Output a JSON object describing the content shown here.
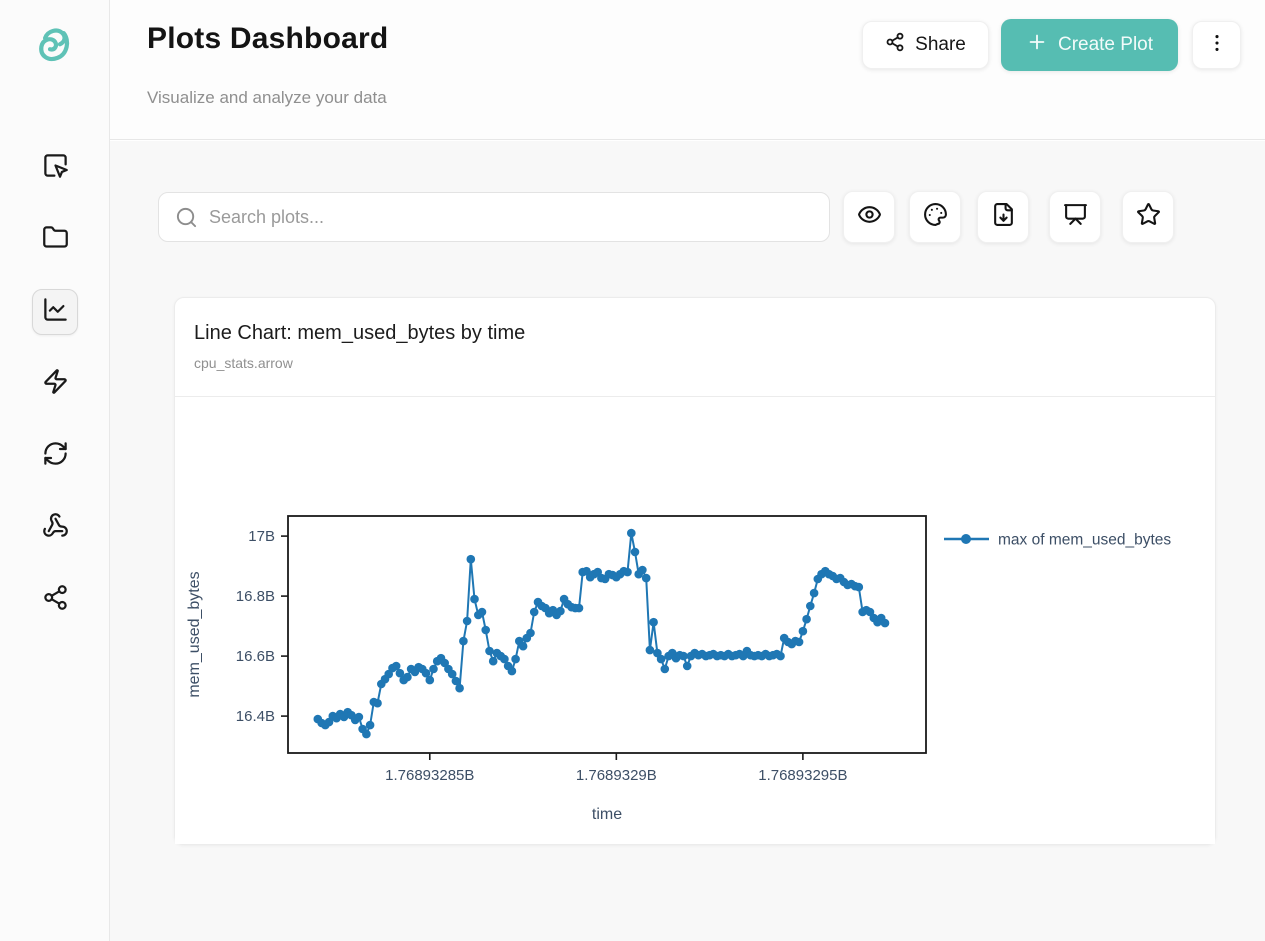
{
  "colors": {
    "accent": "#56bdb2",
    "accent_text": "#f2fbfa",
    "logo": "#5fc2b6",
    "line": "#1f77b4",
    "axis_text": "#3d4f66",
    "plot_frame": "#1a1a1a"
  },
  "sidebar": {
    "logo_icon": "swirl-logo-icon",
    "items": [
      {
        "icon": "square-pointer-icon",
        "active": false
      },
      {
        "icon": "folder-icon",
        "active": false
      },
      {
        "icon": "line-chart-icon",
        "active": true
      },
      {
        "icon": "zap-icon",
        "active": false
      },
      {
        "icon": "refresh-icon",
        "active": false
      },
      {
        "icon": "webhook-icon",
        "active": false
      },
      {
        "icon": "share-icon",
        "active": false
      }
    ]
  },
  "header": {
    "title": "Plots Dashboard",
    "subtitle": "Visualize and analyze your data",
    "share_label": "Share",
    "create_label": "Create Plot",
    "menu_icon": "kebab-menu-icon"
  },
  "toolbar": {
    "search_placeholder": "Search plots...",
    "action_icons": [
      "eye-icon",
      "palette-icon",
      "file-download-icon",
      "presentation-icon",
      "star-icon"
    ]
  },
  "card": {
    "title": "Line Chart: mem_used_bytes by time",
    "subtitle": "cpu_stats.arrow"
  },
  "chart_data": {
    "type": "line",
    "title": "",
    "xlabel": "time",
    "ylabel": "mem_used_bytes",
    "grid": false,
    "legend_position": "right-top-outside",
    "xlim": [
      1768932812,
      1768932983
    ],
    "ylim": [
      16.277,
      17.067
    ],
    "xticks": {
      "values": [
        1768932850,
        1768932900,
        1768932950
      ],
      "labels": [
        "1.76893285B",
        "1.7689329B",
        "1.76893295B"
      ]
    },
    "yticks": {
      "values": [
        16.4,
        16.6,
        16.8,
        17.0
      ],
      "labels": [
        "16.4B",
        "16.6B",
        "16.8B",
        "17B"
      ]
    },
    "y_unit": "billions of bytes",
    "series": [
      {
        "name": "max of mem_used_bytes",
        "color": "#1f77b4",
        "marker": "circle",
        "x": [
          1768932820,
          1768932821,
          1768932822,
          1768932823,
          1768932824,
          1768932825,
          1768932826,
          1768932827,
          1768932828,
          1768932829,
          1768932830,
          1768932831,
          1768932832,
          1768932833,
          1768932834,
          1768932835,
          1768932836,
          1768932837,
          1768932838,
          1768932839,
          1768932840,
          1768932841,
          1768932842,
          1768932843,
          1768932844,
          1768932845,
          1768932846,
          1768932847,
          1768932848,
          1768932849,
          1768932850,
          1768932851,
          1768932852,
          1768932853,
          1768932854,
          1768932855,
          1768932856,
          1768932857,
          1768932858,
          1768932859,
          1768932860,
          1768932861,
          1768932862,
          1768932863,
          1768932864,
          1768932865,
          1768932866,
          1768932867,
          1768932868,
          1768932869,
          1768932870,
          1768932871,
          1768932872,
          1768932873,
          1768932874,
          1768932875,
          1768932876,
          1768932877,
          1768932878,
          1768932879,
          1768932880,
          1768932881,
          1768932882,
          1768932883,
          1768932884,
          1768932885,
          1768932886,
          1768932887,
          1768932888,
          1768932889,
          1768932890,
          1768932891,
          1768932892,
          1768932893,
          1768932894,
          1768932895,
          1768932896,
          1768932897,
          1768932898,
          1768932899,
          1768932900,
          1768932901,
          1768932902,
          1768932903,
          1768932904,
          1768932905,
          1768932906,
          1768932907,
          1768932908,
          1768932909,
          1768932910,
          1768932911,
          1768932912,
          1768932913,
          1768932914,
          1768932915,
          1768932916,
          1768932917,
          1768932918,
          1768932919,
          1768932920,
          1768932921,
          1768932922,
          1768932923,
          1768932924,
          1768932925,
          1768932926,
          1768932927,
          1768932928,
          1768932929,
          1768932930,
          1768932931,
          1768932932,
          1768932933,
          1768932934,
          1768932935,
          1768932936,
          1768932937,
          1768932938,
          1768932939,
          1768932940,
          1768932941,
          1768932942,
          1768932943,
          1768932944,
          1768932945,
          1768932946,
          1768932947,
          1768932948,
          1768932949,
          1768932950,
          1768932951,
          1768932952,
          1768932953,
          1768932954,
          1768932955,
          1768932956,
          1768932957,
          1768932958,
          1768932959,
          1768932960,
          1768932961,
          1768932962,
          1768932963,
          1768932964,
          1768932965,
          1768932966,
          1768932967,
          1768932968,
          1768932969,
          1768932970,
          1768932971,
          1768932972
        ],
        "y": [
          16.39,
          16.377,
          16.37,
          16.38,
          16.4,
          16.393,
          16.407,
          16.397,
          16.413,
          16.403,
          16.387,
          16.397,
          16.357,
          16.34,
          16.37,
          16.447,
          16.443,
          16.507,
          16.523,
          16.54,
          16.56,
          16.567,
          16.543,
          16.52,
          16.53,
          16.557,
          16.547,
          16.563,
          16.557,
          16.543,
          16.52,
          16.557,
          16.583,
          16.593,
          16.577,
          16.557,
          16.54,
          16.517,
          16.493,
          16.65,
          16.717,
          16.923,
          16.79,
          16.737,
          16.747,
          16.687,
          16.617,
          16.583,
          16.61,
          16.6,
          16.59,
          16.567,
          16.55,
          16.59,
          16.65,
          16.633,
          16.66,
          16.677,
          16.747,
          16.78,
          16.767,
          16.76,
          16.743,
          16.753,
          16.737,
          16.75,
          16.79,
          16.773,
          16.763,
          16.76,
          16.76,
          16.88,
          16.883,
          16.863,
          16.873,
          16.88,
          16.86,
          16.857,
          16.873,
          16.87,
          16.863,
          16.873,
          16.883,
          16.88,
          17.01,
          16.947,
          16.873,
          16.887,
          16.86,
          16.62,
          16.713,
          16.61,
          16.59,
          16.557,
          16.6,
          16.61,
          16.593,
          16.603,
          16.6,
          16.567,
          16.6,
          16.61,
          16.603,
          16.607,
          16.6,
          16.603,
          16.607,
          16.6,
          16.603,
          16.6,
          16.607,
          16.6,
          16.603,
          16.607,
          16.6,
          16.617,
          16.603,
          16.6,
          16.603,
          16.6,
          16.607,
          16.6,
          16.603,
          16.607,
          16.6,
          16.66,
          16.647,
          16.64,
          16.65,
          16.647,
          16.683,
          16.723,
          16.767,
          16.81,
          16.857,
          16.873,
          16.883,
          16.873,
          16.867,
          16.857,
          16.86,
          16.847,
          16.837,
          16.84,
          16.833,
          16.83,
          16.747,
          16.753,
          16.747,
          16.727,
          16.713,
          16.727,
          16.71
        ]
      }
    ]
  }
}
